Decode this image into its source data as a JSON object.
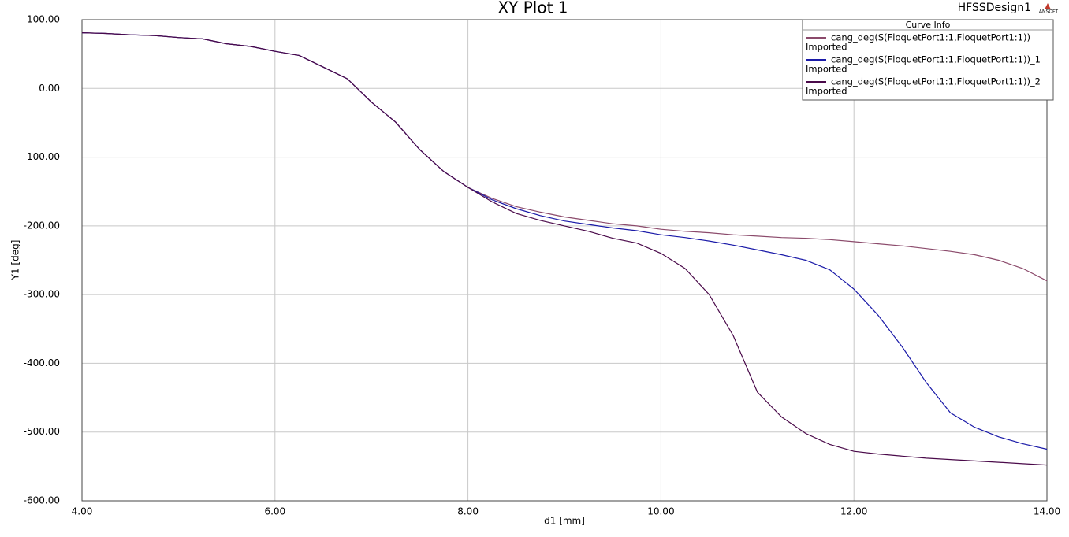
{
  "chart_data": {
    "type": "line",
    "title": "XY Plot 1",
    "design_name": "HFSSDesign1",
    "logo_text": "ANSOFT",
    "x_label": "d1 [mm]",
    "y_label": "Y1 [deg]",
    "legend_title": "Curve Info",
    "x": [
      4,
      4.25,
      4.5,
      4.75,
      5,
      5.25,
      5.5,
      5.75,
      6,
      6.25,
      6.5,
      6.75,
      7,
      7.25,
      7.5,
      7.75,
      8,
      8.25,
      8.5,
      8.75,
      9,
      9.25,
      9.5,
      9.75,
      10,
      10.25,
      10.5,
      10.75,
      11,
      11.25,
      11.5,
      11.75,
      12,
      12.25,
      12.5,
      12.75,
      13,
      13.25,
      13.5,
      13.75,
      14
    ],
    "series": [
      {
        "name": "cang_deg(S(FloquetPort1:1,FloquetPort1:1))",
        "source": "Imported",
        "color": "#8b4a6b",
        "values": [
          81,
          80,
          78,
          77,
          74,
          72,
          65,
          61,
          54,
          48,
          31,
          14,
          -20,
          -49,
          -89,
          -121,
          -144,
          -160,
          -172,
          -180,
          -187,
          -192,
          -197,
          -200,
          -205,
          -208,
          -210,
          -213,
          -215,
          -217,
          -218,
          -220,
          -223,
          -226,
          -229,
          -233,
          -237,
          -242,
          -250,
          -262,
          -280
        ]
      },
      {
        "name": "cang_deg(S(FloquetPort1:1,FloquetPort1:1))_1",
        "source": "Imported",
        "color": "#1a1aa8",
        "values": [
          81,
          80,
          78,
          77,
          74,
          72,
          65,
          61,
          54,
          48,
          31,
          14,
          -20,
          -49,
          -89,
          -121,
          -144,
          -162,
          -175,
          -185,
          -193,
          -198,
          -203,
          -207,
          -213,
          -217,
          -222,
          -228,
          -235,
          -242,
          -250,
          -264,
          -292,
          -330,
          -376,
          -428,
          -472,
          -493,
          -507,
          -517,
          -525
        ]
      },
      {
        "name": "cang_deg(S(FloquetPort1:1,FloquetPort1:1))_2",
        "source": "Imported",
        "color": "#4a0a4a",
        "values": [
          81,
          80,
          78,
          77,
          74,
          72,
          65,
          61,
          54,
          48,
          31,
          14,
          -20,
          -49,
          -89,
          -121,
          -144,
          -165,
          -182,
          -192,
          -200,
          -208,
          -218,
          -225,
          -240,
          -262,
          -300,
          -360,
          -442,
          -478,
          -502,
          -518,
          -528,
          -532,
          -535,
          -538,
          -540,
          -542,
          -544,
          -546,
          -548
        ]
      }
    ],
    "xlim": [
      4,
      14
    ],
    "xticks": [
      {
        "value": 4,
        "label": "4.00"
      },
      {
        "value": 6,
        "label": "6.00"
      },
      {
        "value": 8,
        "label": "8.00"
      },
      {
        "value": 10,
        "label": "10.00"
      },
      {
        "value": 12,
        "label": "12.00"
      },
      {
        "value": 14,
        "label": "14.00"
      }
    ],
    "ylim": [
      -600,
      100
    ],
    "yticks": [
      {
        "value": 100,
        "label": "100.00"
      },
      {
        "value": 0,
        "label": "0.00"
      },
      {
        "value": -100,
        "label": "-100.00"
      },
      {
        "value": -200,
        "label": "-200.00"
      },
      {
        "value": -300,
        "label": "-300.00"
      },
      {
        "value": -400,
        "label": "-400.00"
      },
      {
        "value": -500,
        "label": "-500.00"
      },
      {
        "value": -600,
        "label": "-600.00"
      }
    ],
    "grid": true
  }
}
